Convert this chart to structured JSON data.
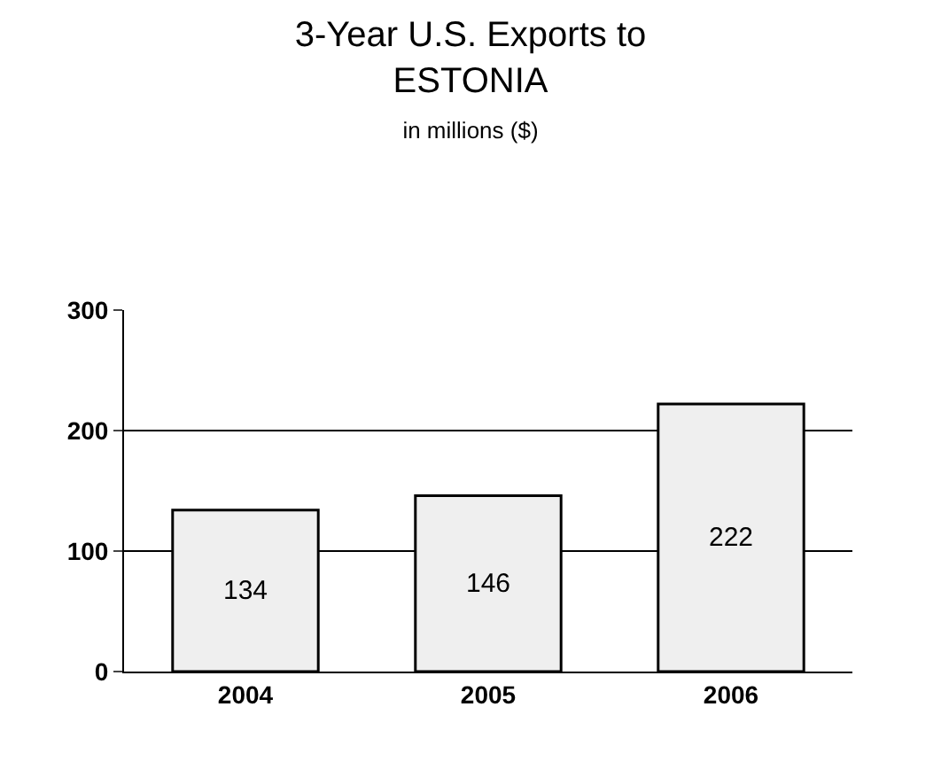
{
  "chart_data": {
    "type": "bar",
    "title": "3-Year U.S. Exports to ESTONIA",
    "subtitle": "in millions ($)",
    "categories": [
      "2004",
      "2005",
      "2006"
    ],
    "values": [
      134,
      146,
      222
    ],
    "color": "#efefef",
    "ylim": [
      0,
      300
    ],
    "yticks": [
      0,
      100,
      200,
      300
    ],
    "grid": "y",
    "data_labels": true
  }
}
